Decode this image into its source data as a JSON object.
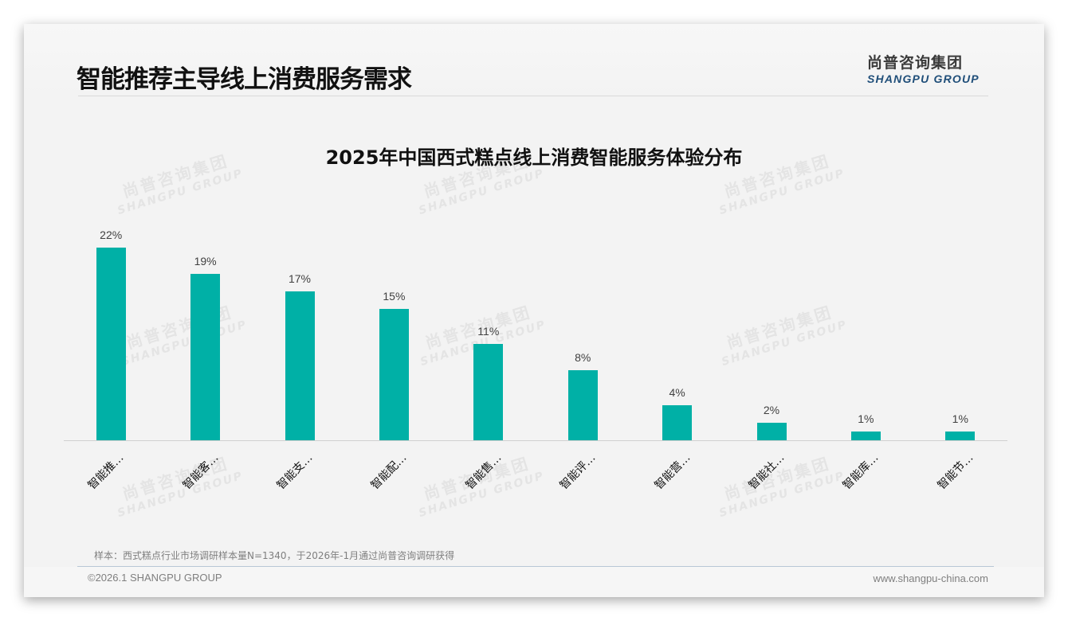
{
  "header": {
    "title": "智能推荐主导线上消费服务需求",
    "logo_cn": "尚普咨询集团",
    "logo_en": "SHANGPU GROUP"
  },
  "watermark": {
    "cn": "尚普咨询集团",
    "en": "SHANGPU GROUP"
  },
  "colors": {
    "bar": "#00b0a6",
    "logo_en": "#1f4e79",
    "background": "#f3f3f3"
  },
  "chart_data": {
    "type": "bar",
    "title": "2025年中国西式糕点线上消费智能服务体验分布",
    "categories": [
      "智能推…",
      "智能客…",
      "智能支…",
      "智能配…",
      "智能售…",
      "智能评…",
      "智能营…",
      "智能社…",
      "智能库…",
      "智能节…"
    ],
    "values": [
      22,
      19,
      17,
      15,
      11,
      8,
      4,
      2,
      1,
      1
    ],
    "value_labels": [
      "22%",
      "19%",
      "17%",
      "15%",
      "11%",
      "8%",
      "4%",
      "2%",
      "1%",
      "1%"
    ],
    "unit": "%",
    "xlabel": "",
    "ylabel": "",
    "ylim": [
      0,
      25
    ],
    "grid": false,
    "legend": "none",
    "x_tick_rotation": -45
  },
  "footer": {
    "source_note": "样本：西式糕点行业市场调研样本量N=1340，于2026年-1月通过尚普咨询调研获得",
    "copyright": "©2026.1 SHANGPU GROUP",
    "website": "www.shangpu-china.com"
  }
}
